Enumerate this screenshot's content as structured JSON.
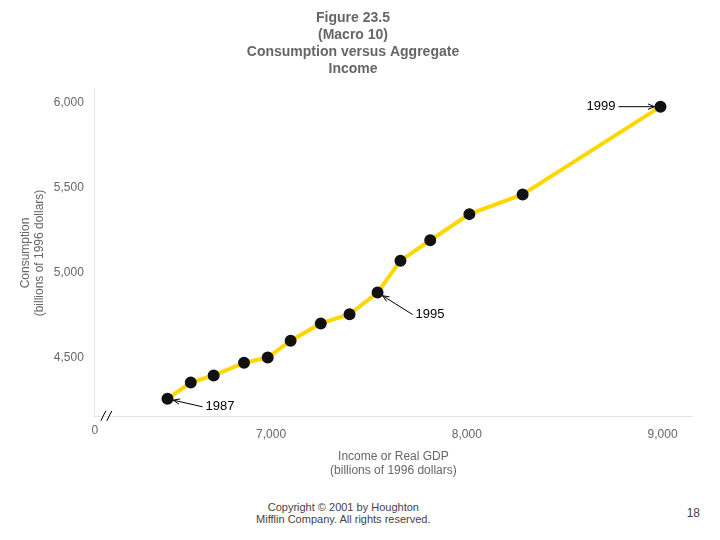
{
  "chart_data": {
    "type": "line",
    "title": [
      "Figure 23.5",
      "(Macro 10)",
      "Consumption versus Aggregate",
      "Income"
    ],
    "xlabel": [
      "Income or Real GDP",
      "(billions of 1996 dollars)"
    ],
    "ylabel": [
      "Consumption",
      "(billions of 1996 dollars)"
    ],
    "x": [
      6471,
      6590,
      6707,
      6862,
      6983,
      7100,
      7254,
      7401,
      7544,
      7661,
      7813,
      8013,
      8285,
      8989
    ],
    "values": [
      4256,
      4352,
      4394,
      4468,
      4499,
      4598,
      4700,
      4754,
      4882,
      5070,
      5190,
      5344,
      5460,
      5977
    ],
    "color": "#FFD700",
    "marker": "circle",
    "marker_color": "#111111",
    "xlim": [
      6100,
      9150
    ],
    "ylim": [
      4150,
      6080
    ],
    "xticks": [
      {
        "value": 7000,
        "label": "7,000"
      },
      {
        "value": 8000,
        "label": "8,000"
      },
      {
        "value": 9000,
        "label": "9,000"
      }
    ],
    "yticks": [
      {
        "value": 4500,
        "label": "4,500"
      },
      {
        "value": 5000,
        "label": "5,000"
      },
      {
        "value": 5500,
        "label": "5,500"
      },
      {
        "value": 6000,
        "label": "6,000"
      }
    ],
    "grid": false,
    "axis_break_label": "0",
    "annotations": [
      {
        "text": "1987",
        "x": 6471,
        "y": 4256
      },
      {
        "text": "1995",
        "x": 7544,
        "y": 4882
      },
      {
        "text": "1999",
        "x": 8989,
        "y": 5977
      }
    ],
    "caption": "Copyright © 2001 by Houghton\nMifflin Company.  All rights reserved.",
    "page_number": "18"
  }
}
